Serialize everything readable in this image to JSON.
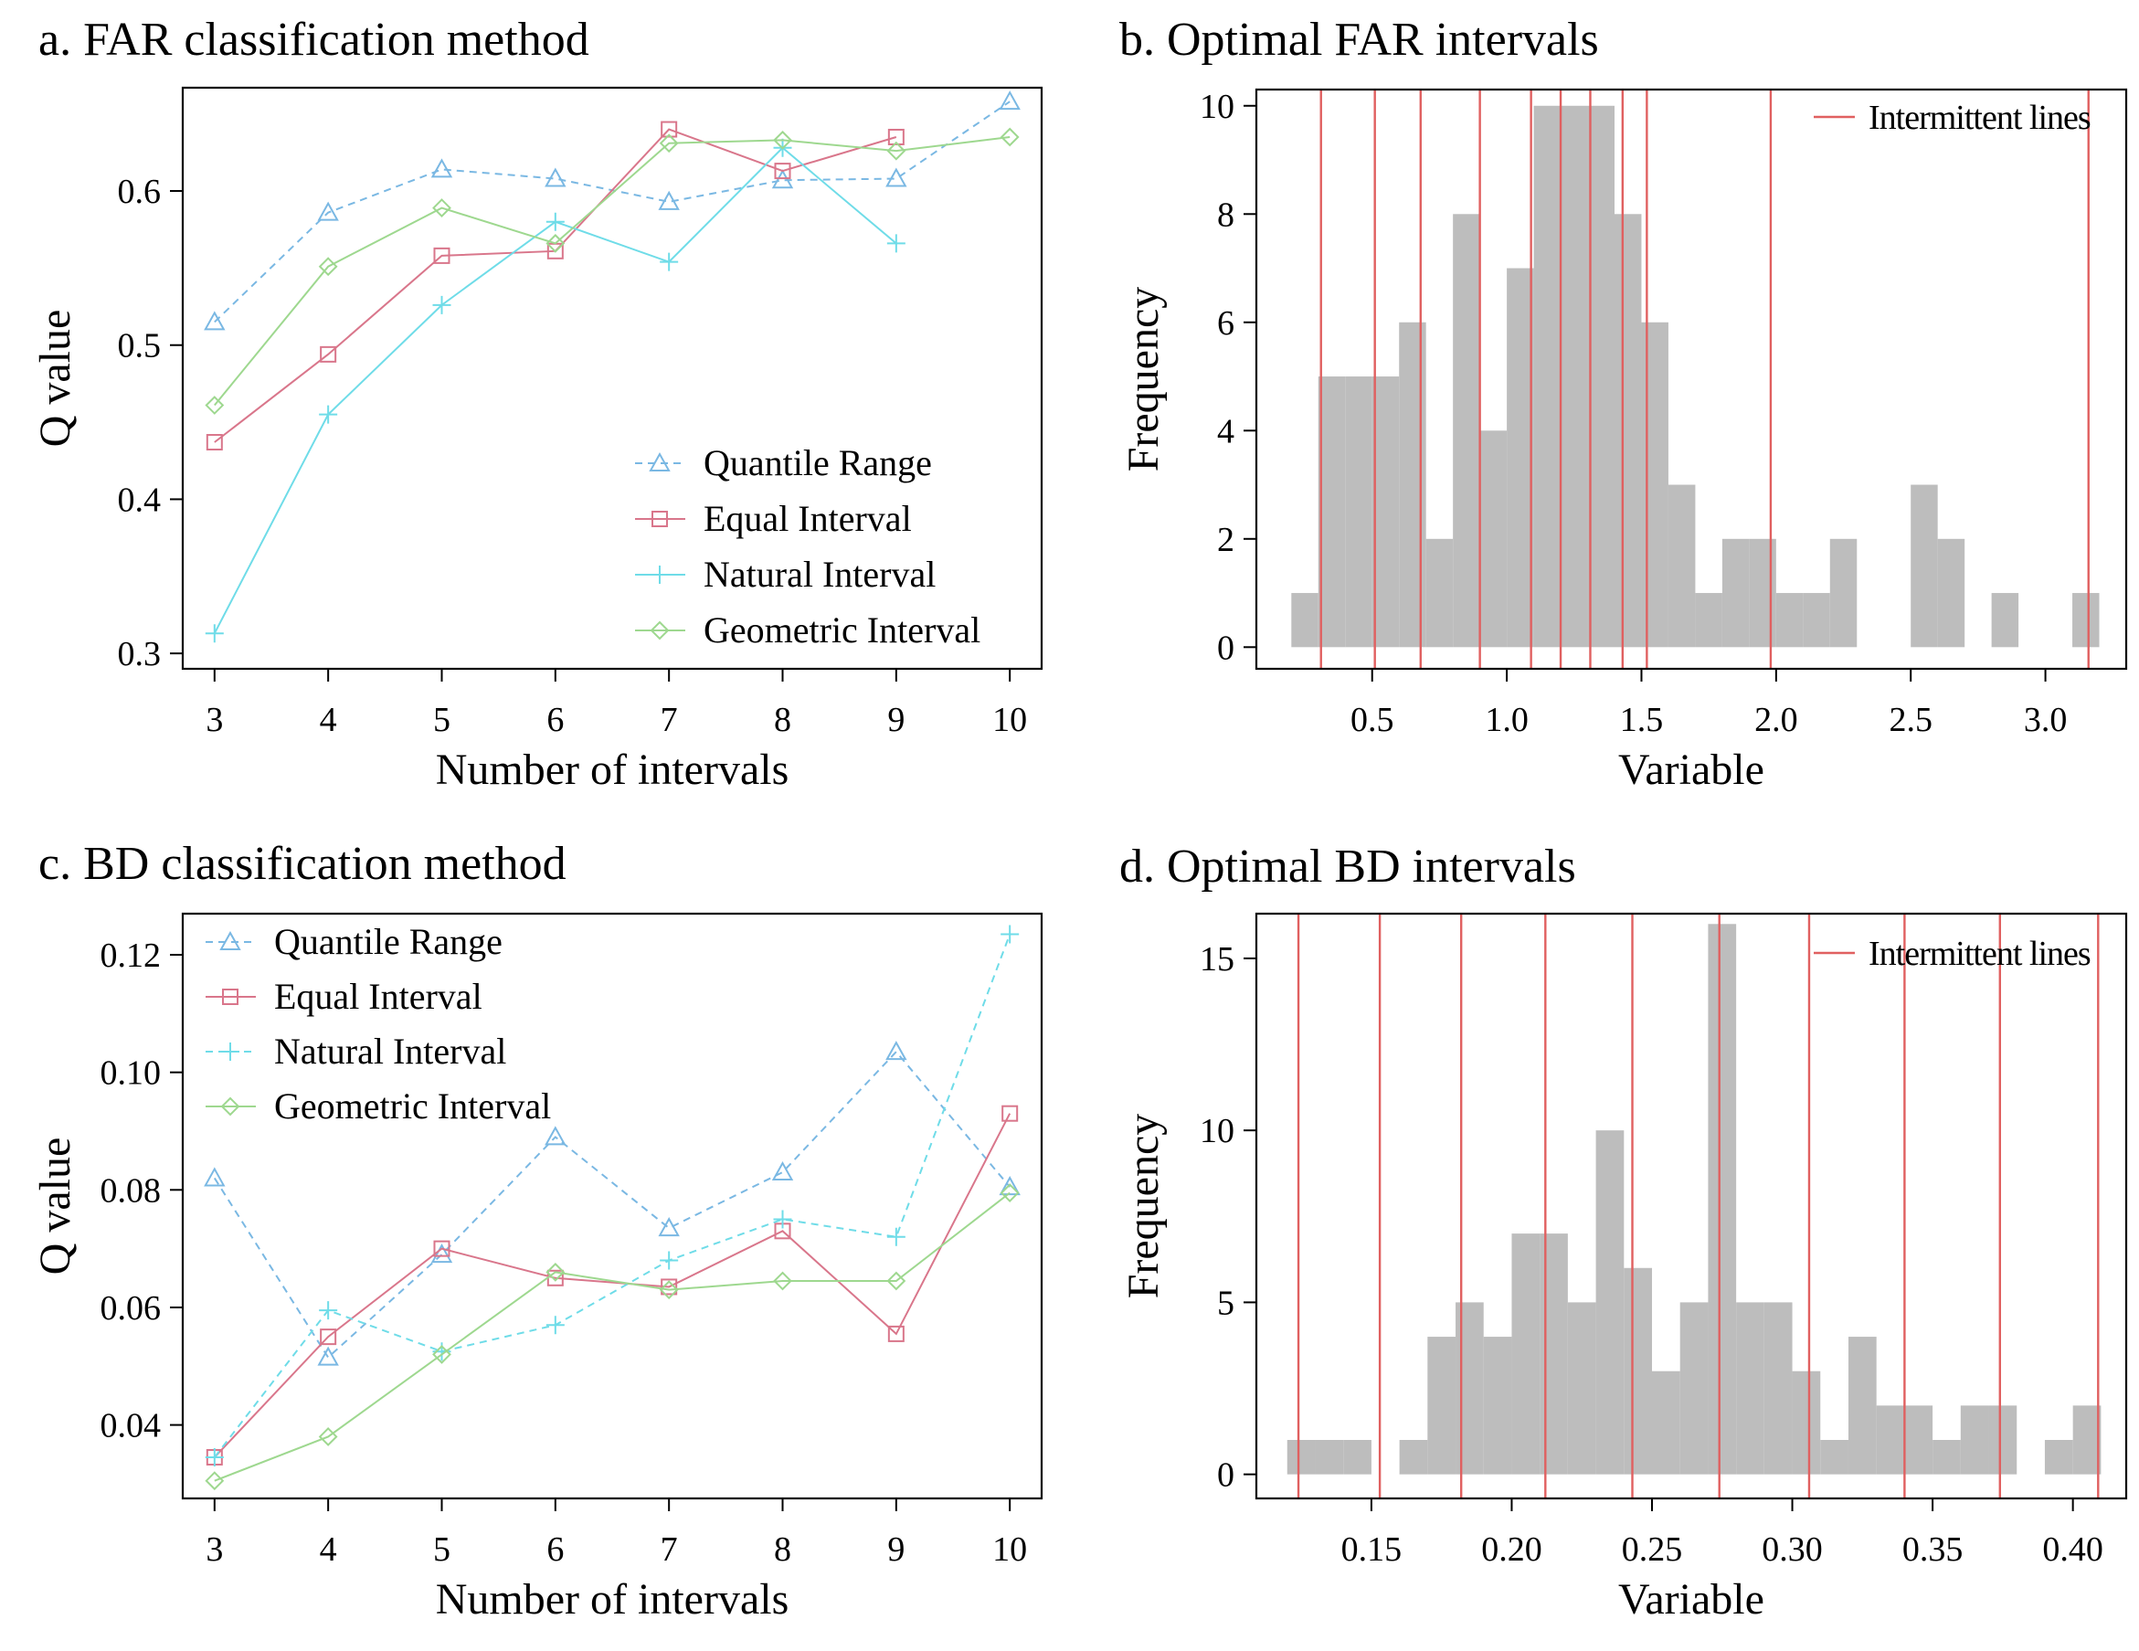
{
  "chart_data": [
    {
      "id": "a",
      "type": "line",
      "title": "a. FAR classification method",
      "xlabel": "Number of intervals",
      "ylabel": "Q value",
      "x": [
        3,
        4,
        5,
        6,
        7,
        8,
        9,
        10
      ],
      "xlim": [
        2.72,
        10.28
      ],
      "ylim": [
        0.29,
        0.667
      ],
      "xticks": [
        3,
        4,
        5,
        6,
        7,
        8,
        9,
        10
      ],
      "yticks": [
        0.3,
        0.4,
        0.5,
        0.6
      ],
      "ytick_labels": [
        "0.3",
        "0.4",
        "0.5",
        "0.6"
      ],
      "legend_position": "bottom-right",
      "series": [
        {
          "name": "Quantile Range",
          "color": "#7ab8e3",
          "marker": "triangle",
          "dash": "dashed",
          "values": [
            0.515,
            0.586,
            0.614,
            0.608,
            0.593,
            0.607,
            0.608,
            0.658
          ]
        },
        {
          "name": "Equal Interval",
          "color": "#d9768b",
          "marker": "square",
          "dash": "solid",
          "values": [
            0.437,
            0.494,
            0.558,
            0.561,
            0.64,
            0.613,
            0.635,
            null
          ]
        },
        {
          "name": "Natural Interval",
          "color": "#6fdce8",
          "marker": "plus",
          "dash": "solid",
          "values": [
            0.313,
            0.455,
            0.526,
            0.58,
            0.554,
            0.628,
            0.566,
            null
          ]
        },
        {
          "name": "Geometric Interval",
          "color": "#9ed88f",
          "marker": "diamond",
          "dash": "solid",
          "values": [
            0.461,
            0.551,
            0.589,
            0.566,
            0.631,
            0.633,
            0.626,
            0.635
          ]
        }
      ]
    },
    {
      "id": "b",
      "type": "bar",
      "title": "b. Optimal FAR intervals",
      "xlabel": "Variable",
      "ylabel": "Frequency",
      "xlim": [
        0.07,
        3.3
      ],
      "ylim": [
        -0.4,
        10.3
      ],
      "xticks": [
        0.5,
        1.0,
        1.5,
        2.0,
        2.5,
        3.0
      ],
      "xtick_labels": [
        "0.5",
        "1.0",
        "1.5",
        "2.0",
        "2.5",
        "3.0"
      ],
      "yticks": [
        0,
        2,
        4,
        6,
        8,
        10
      ],
      "ytick_labels": [
        "0",
        "2",
        "4",
        "6",
        "8",
        "10"
      ],
      "bin_edges": [
        0.2,
        0.3,
        0.4,
        0.5,
        0.6,
        0.7,
        0.8,
        0.9,
        1.0,
        1.1,
        1.2,
        1.3,
        1.4,
        1.5,
        1.6,
        1.7,
        1.8,
        1.9,
        2.0,
        2.1,
        2.2,
        2.3,
        2.4,
        2.5,
        2.6,
        2.7,
        2.8,
        2.9,
        3.0,
        3.1,
        3.2
      ],
      "values": [
        1,
        5,
        5,
        5,
        6,
        2,
        8,
        4,
        7,
        10,
        10,
        10,
        8,
        6,
        3,
        1,
        2,
        2,
        1,
        1,
        2,
        0,
        0,
        3,
        2,
        0,
        1,
        0,
        0,
        1
      ],
      "intermittent_lines": [
        0.31,
        0.51,
        0.68,
        0.9,
        1.09,
        1.2,
        1.31,
        1.43,
        1.52,
        1.98,
        3.16
      ],
      "legend_label": "Intermittent lines",
      "legend_position": "top-right",
      "bar_color": "#bdbdbd",
      "line_color": "#e06060"
    },
    {
      "id": "c",
      "type": "line",
      "title": "c. BD classification method",
      "xlabel": "Number of intervals",
      "ylabel": "Q value",
      "x": [
        3,
        4,
        5,
        6,
        7,
        8,
        9,
        10
      ],
      "xlim": [
        2.72,
        10.28
      ],
      "ylim": [
        0.0275,
        0.127
      ],
      "xticks": [
        3,
        4,
        5,
        6,
        7,
        8,
        9,
        10
      ],
      "yticks": [
        0.04,
        0.06,
        0.08,
        0.1,
        0.12
      ],
      "ytick_labels": [
        "0.04",
        "0.06",
        "0.08",
        "0.10",
        "0.12"
      ],
      "legend_position": "top-left",
      "series": [
        {
          "name": "Quantile Range",
          "color": "#7ab8e3",
          "marker": "triangle",
          "dash": "dashed",
          "values": [
            0.082,
            0.0515,
            0.069,
            0.089,
            0.0735,
            0.083,
            0.1035,
            0.0805
          ]
        },
        {
          "name": "Equal Interval",
          "color": "#d9768b",
          "marker": "square",
          "dash": "solid",
          "values": [
            0.0345,
            0.055,
            0.07,
            0.065,
            0.0635,
            0.073,
            0.0555,
            0.093
          ]
        },
        {
          "name": "Natural Interval",
          "color": "#6fdce8",
          "marker": "plus",
          "dash": "dashed",
          "values": [
            0.0345,
            0.0595,
            0.0525,
            0.057,
            0.068,
            0.075,
            0.072,
            0.1235
          ]
        },
        {
          "name": "Geometric Interval",
          "color": "#9ed88f",
          "marker": "diamond",
          "dash": "solid",
          "values": [
            0.0305,
            0.038,
            0.052,
            0.066,
            0.063,
            0.0645,
            0.0645,
            0.0795
          ]
        }
      ]
    },
    {
      "id": "d",
      "type": "bar",
      "title": "d. Optimal BD intervals",
      "xlabel": "Variable",
      "ylabel": "Frequency",
      "xlim": [
        0.109,
        0.419
      ],
      "ylim": [
        -0.7,
        16.3
      ],
      "xticks": [
        0.15,
        0.2,
        0.25,
        0.3,
        0.35,
        0.4
      ],
      "xtick_labels": [
        "0.15",
        "0.20",
        "0.25",
        "0.30",
        "0.35",
        "0.40"
      ],
      "yticks": [
        0,
        5,
        10,
        15
      ],
      "ytick_labels": [
        "0",
        "5",
        "10",
        "15"
      ],
      "bin_edges": [
        0.12,
        0.13,
        0.14,
        0.15,
        0.16,
        0.17,
        0.18,
        0.19,
        0.2,
        0.21,
        0.22,
        0.23,
        0.24,
        0.25,
        0.26,
        0.27,
        0.28,
        0.29,
        0.3,
        0.31,
        0.32,
        0.33,
        0.34,
        0.35,
        0.36,
        0.37,
        0.38,
        0.39,
        0.4,
        0.41
      ],
      "values": [
        1,
        1,
        1,
        0,
        1,
        4,
        5,
        4,
        7,
        7,
        5,
        10,
        6,
        3,
        5,
        16,
        5,
        5,
        3,
        1,
        4,
        2,
        2,
        1,
        2,
        2,
        0,
        1,
        2
      ],
      "intermittent_lines": [
        0.124,
        0.153,
        0.182,
        0.212,
        0.243,
        0.274,
        0.306,
        0.34,
        0.374,
        0.409
      ],
      "legend_label": "Intermittent lines",
      "legend_position": "top-right",
      "bar_color": "#bdbdbd",
      "line_color": "#e06060"
    }
  ]
}
